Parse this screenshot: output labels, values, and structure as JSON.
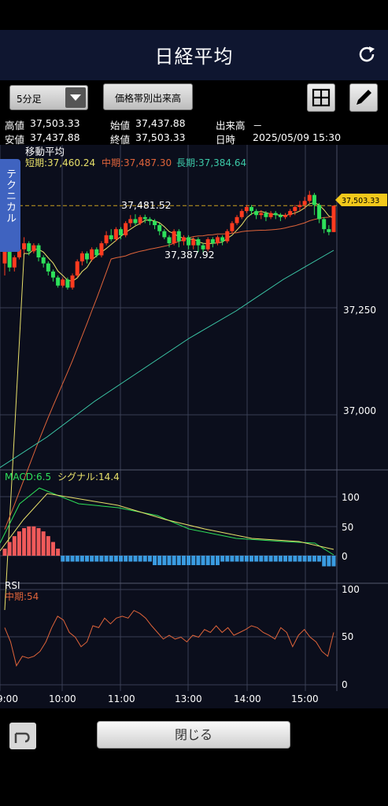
{
  "header": {
    "title": "日経平均"
  },
  "toolbar": {
    "timeframe": "5分足",
    "volume_button": "価格帯別出来高"
  },
  "info": {
    "high_label": "高値",
    "high": "37,503.33",
    "open_label": "始値",
    "open": "37,437.88",
    "volume_label": "出来高",
    "volume": "－",
    "low_label": "安値",
    "low": "37,437.88",
    "close_label": "終値",
    "close": "37,503.33",
    "datetime_label": "日時",
    "datetime": "2025/05/09 15:30"
  },
  "side_tab": "テクニカル",
  "footer": {
    "close_button": "閉じる"
  },
  "colors": {
    "up": "#ff3b1f",
    "down": "#2ee05a",
    "short_ma": "#e8e06a",
    "mid_ma": "#e0643a",
    "long_ma": "#3cc9a8",
    "macd": "#2ee05a",
    "signal": "#e8e06a",
    "rsi": "#e0643a",
    "hist_pos": "#f05a5a",
    "hist_neg": "#3a9be0",
    "price_tag": "#f3c81b"
  },
  "chart_data": [
    {
      "type": "candlestick",
      "title": "移動平均",
      "ma_labels": {
        "short": "短期:37,460.24",
        "mid": "中期:37,487.30",
        "long": "長期:37,384.64"
      },
      "y_ticks": [
        37250,
        37000
      ],
      "y_tick_labels": [
        "37,250",
        "37,000"
      ],
      "current_price": 37503.33,
      "current_price_label": "37,503.33",
      "annotations": [
        {
          "label": "37,481.52",
          "value": 37481.52
        },
        {
          "label": "37,387.92",
          "value": 37387.92
        }
      ],
      "candles": [
        [
          37360,
          37395,
          37330,
          37410
        ],
        [
          37395,
          37350,
          37340,
          37405
        ],
        [
          37350,
          37375,
          37340,
          37380
        ],
        [
          37375,
          37395,
          37370,
          37410
        ],
        [
          37395,
          37410,
          37385,
          37425
        ],
        [
          37410,
          37390,
          37380,
          37415
        ],
        [
          37390,
          37405,
          37385,
          37410
        ],
        [
          37405,
          37375,
          37365,
          37410
        ],
        [
          37375,
          37360,
          37350,
          37380
        ],
        [
          37360,
          37340,
          37330,
          37365
        ],
        [
          37340,
          37325,
          37315,
          37345
        ],
        [
          37325,
          37305,
          37300,
          37330
        ],
        [
          37305,
          37320,
          37300,
          37325
        ],
        [
          37320,
          37300,
          37295,
          37325
        ],
        [
          37300,
          37330,
          37295,
          37335
        ],
        [
          37330,
          37365,
          37325,
          37370
        ],
        [
          37365,
          37385,
          37355,
          37390
        ],
        [
          37385,
          37370,
          37360,
          37390
        ],
        [
          37370,
          37395,
          37365,
          37400
        ],
        [
          37395,
          37380,
          37375,
          37400
        ],
        [
          37380,
          37410,
          37375,
          37415
        ],
        [
          37410,
          37430,
          37405,
          37440
        ],
        [
          37430,
          37420,
          37415,
          37445
        ],
        [
          37420,
          37445,
          37415,
          37450
        ],
        [
          37445,
          37430,
          37420,
          37450
        ],
        [
          37430,
          37460,
          37425,
          37465
        ],
        [
          37460,
          37470,
          37450,
          37480
        ],
        [
          37470,
          37460,
          37455,
          37482
        ],
        [
          37460,
          37475,
          37455,
          37480
        ],
        [
          37475,
          37470,
          37460,
          37481
        ],
        [
          37470,
          37465,
          37455,
          37475
        ],
        [
          37465,
          37455,
          37445,
          37470
        ],
        [
          37455,
          37440,
          37430,
          37460
        ],
        [
          37440,
          37425,
          37420,
          37445
        ],
        [
          37425,
          37410,
          37400,
          37430
        ],
        [
          37410,
          37440,
          37405,
          37445
        ],
        [
          37440,
          37415,
          37400,
          37445
        ],
        [
          37415,
          37425,
          37405,
          37430
        ],
        [
          37425,
          37405,
          37395,
          37430
        ],
        [
          37405,
          37420,
          37395,
          37425
        ],
        [
          37420,
          37405,
          37388,
          37425
        ],
        [
          37405,
          37395,
          37388,
          37410
        ],
        [
          37395,
          37420,
          37390,
          37425
        ],
        [
          37420,
          37410,
          37400,
          37425
        ],
        [
          37410,
          37425,
          37405,
          37430
        ],
        [
          37425,
          37415,
          37405,
          37430
        ],
        [
          37415,
          37440,
          37410,
          37445
        ],
        [
          37440,
          37460,
          37435,
          37465
        ],
        [
          37460,
          37475,
          37455,
          37480
        ],
        [
          37475,
          37490,
          37470,
          37495
        ],
        [
          37490,
          37500,
          37485,
          37505
        ],
        [
          37500,
          37490,
          37480,
          37505
        ],
        [
          37490,
          37480,
          37470,
          37495
        ],
        [
          37480,
          37485,
          37470,
          37492
        ],
        [
          37485,
          37475,
          37465,
          37490
        ],
        [
          37475,
          37485,
          37470,
          37490
        ],
        [
          37485,
          37480,
          37470,
          37490
        ],
        [
          37480,
          37475,
          37465,
          37485
        ],
        [
          37475,
          37480,
          37470,
          37485
        ],
        [
          37480,
          37490,
          37475,
          37495
        ],
        [
          37490,
          37500,
          37480,
          37505
        ],
        [
          37500,
          37505,
          37490,
          37515
        ],
        [
          37505,
          37515,
          37495,
          37525
        ],
        [
          37515,
          37530,
          37510,
          37540
        ],
        [
          37530,
          37505,
          37480,
          37535
        ],
        [
          37505,
          37470,
          37460,
          37510
        ],
        [
          37470,
          37445,
          37435,
          37475
        ],
        [
          37445,
          37437.88,
          37430,
          37455
        ],
        [
          37437.88,
          37503.33,
          37437.88,
          37503.33
        ]
      ]
    },
    {
      "type": "line",
      "title": "MACD",
      "labels": {
        "macd": "MACD:6.5",
        "signal": "シグナル:14.4"
      },
      "y_ticks": [
        100,
        50,
        0
      ],
      "y_tick_labels": [
        "100",
        "50",
        "0"
      ]
    },
    {
      "type": "line",
      "title": "RSI",
      "labels": {
        "rsi": "中期:54"
      },
      "y_ticks": [
        100,
        50,
        0
      ],
      "y_tick_labels": [
        "100",
        "50",
        "0"
      ],
      "x_tick_labels": [
        "9:00",
        "10:00",
        "11:00",
        "13:00",
        "14:00",
        "15:00"
      ]
    }
  ]
}
